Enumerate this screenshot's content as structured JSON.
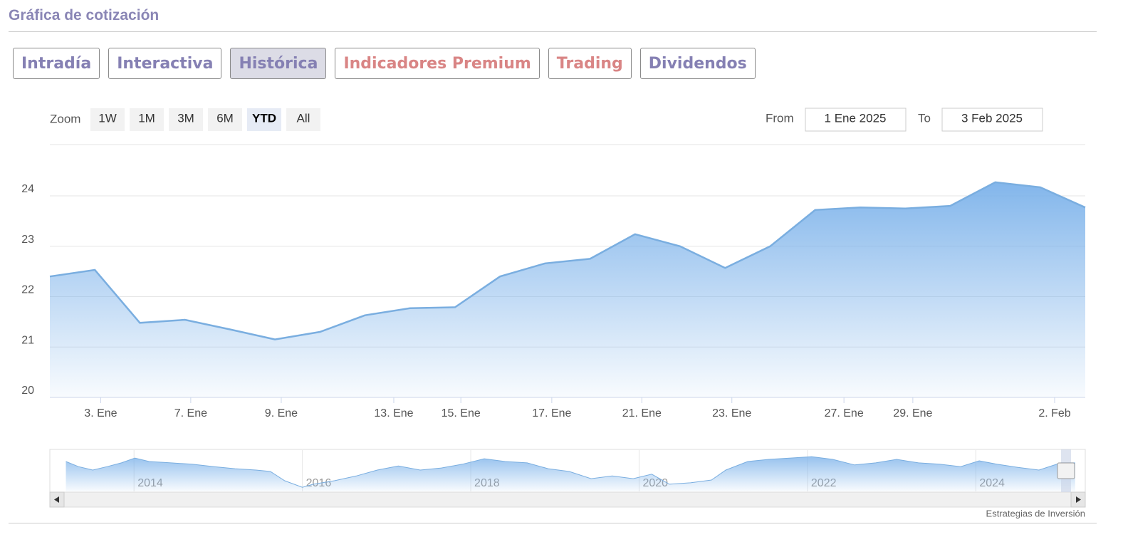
{
  "header": {
    "title": "Gráfica de cotización"
  },
  "tabs": [
    "Intradía",
    "Interactiva",
    "Histórica",
    "Indicadores Premium",
    "Trading",
    "Dividendos"
  ],
  "zoom": {
    "label": "Zoom",
    "buttons": [
      "1W",
      "1M",
      "3M",
      "6M",
      "YTD",
      "All"
    ]
  },
  "range": {
    "from_label": "From",
    "from": "1 Ene 2025",
    "to_label": "To",
    "to": "3 Feb 2025"
  },
  "footer": {
    "credit": "Estrategias de Inversión"
  },
  "chart_data": [
    {
      "type": "area",
      "x": [
        0,
        1,
        2,
        3,
        4,
        5,
        6,
        7,
        8,
        9,
        10,
        11,
        12,
        13,
        14,
        15,
        16,
        17,
        18,
        19,
        20,
        21,
        22,
        23
      ],
      "series": [
        {
          "color": "#7aaee0",
          "values": [
            22.4,
            22.53,
            21.48,
            21.54,
            21.35,
            21.15,
            21.3,
            21.63,
            21.77,
            21.79,
            22.4,
            22.66,
            22.75,
            23.24,
            23.0,
            22.57,
            23.0,
            23.72,
            23.77,
            23.75,
            23.8,
            24.27,
            24.17,
            23.77
          ]
        }
      ],
      "xlim": [
        0,
        23
      ],
      "xticks": [
        {
          "value": 1.13,
          "label": "3. Ene"
        },
        {
          "value": 3.13,
          "label": "7. Ene"
        },
        {
          "value": 5.14,
          "label": "9. Ene"
        },
        {
          "value": 7.64,
          "label": "13. Ene"
        },
        {
          "value": 9.13,
          "label": "15. Ene"
        },
        {
          "value": 11.15,
          "label": "17. Ene"
        },
        {
          "value": 13.15,
          "label": "21. Ene"
        },
        {
          "value": 15.15,
          "label": "23. Ene"
        },
        {
          "value": 17.64,
          "label": "27. Ene"
        },
        {
          "value": 19.17,
          "label": "29. Ene"
        },
        {
          "value": 22.32,
          "label": "2. Feb"
        }
      ],
      "ylim": [
        20,
        25
      ],
      "yticks": [
        20,
        21,
        22,
        23,
        24
      ],
      "grid": true
    },
    {
      "type": "area",
      "x": [
        2013.19,
        2013.34,
        2013.51,
        2013.68,
        2013.85,
        2014.01,
        2014.18,
        2014.44,
        2014.69,
        2014.95,
        2015.2,
        2015.45,
        2015.62,
        2015.79,
        2016.0,
        2016.13,
        2016.38,
        2016.64,
        2016.89,
        2017.14,
        2017.4,
        2017.65,
        2017.9,
        2018.16,
        2018.41,
        2018.67,
        2018.92,
        2019.17,
        2019.43,
        2019.68,
        2019.93,
        2020.15,
        2020.36,
        2020.61,
        2020.86,
        2021.03,
        2021.29,
        2021.54,
        2021.8,
        2022.05,
        2022.3,
        2022.56,
        2022.81,
        2023.06,
        2023.32,
        2023.57,
        2023.82,
        2024.04,
        2024.25,
        2024.5,
        2024.75,
        2025.01,
        2025.18
      ],
      "series": [
        {
          "color": "#7aaee0",
          "values": [
            22.7,
            21.2,
            20.2,
            21.2,
            22.3,
            23.7,
            22.7,
            22.3,
            21.9,
            21.2,
            20.6,
            20.2,
            19.8,
            17.1,
            15.2,
            16.1,
            17.1,
            18.5,
            20.2,
            21.4,
            20.2,
            20.8,
            21.9,
            23.5,
            22.7,
            22.3,
            20.6,
            19.8,
            17.7,
            18.5,
            17.7,
            19.0,
            16.1,
            16.5,
            17.3,
            20.2,
            22.7,
            23.3,
            23.7,
            24.1,
            23.3,
            21.7,
            22.3,
            23.3,
            22.3,
            21.9,
            21.2,
            22.9,
            21.9,
            21.0,
            20.2,
            22.3,
            22.3
          ]
        }
      ],
      "xlim": [
        2013,
        2025.3
      ],
      "xticks": [
        2014,
        2016,
        2018,
        2020,
        2022,
        2024
      ],
      "ylim": [
        14,
        26
      ],
      "grid": true
    }
  ]
}
